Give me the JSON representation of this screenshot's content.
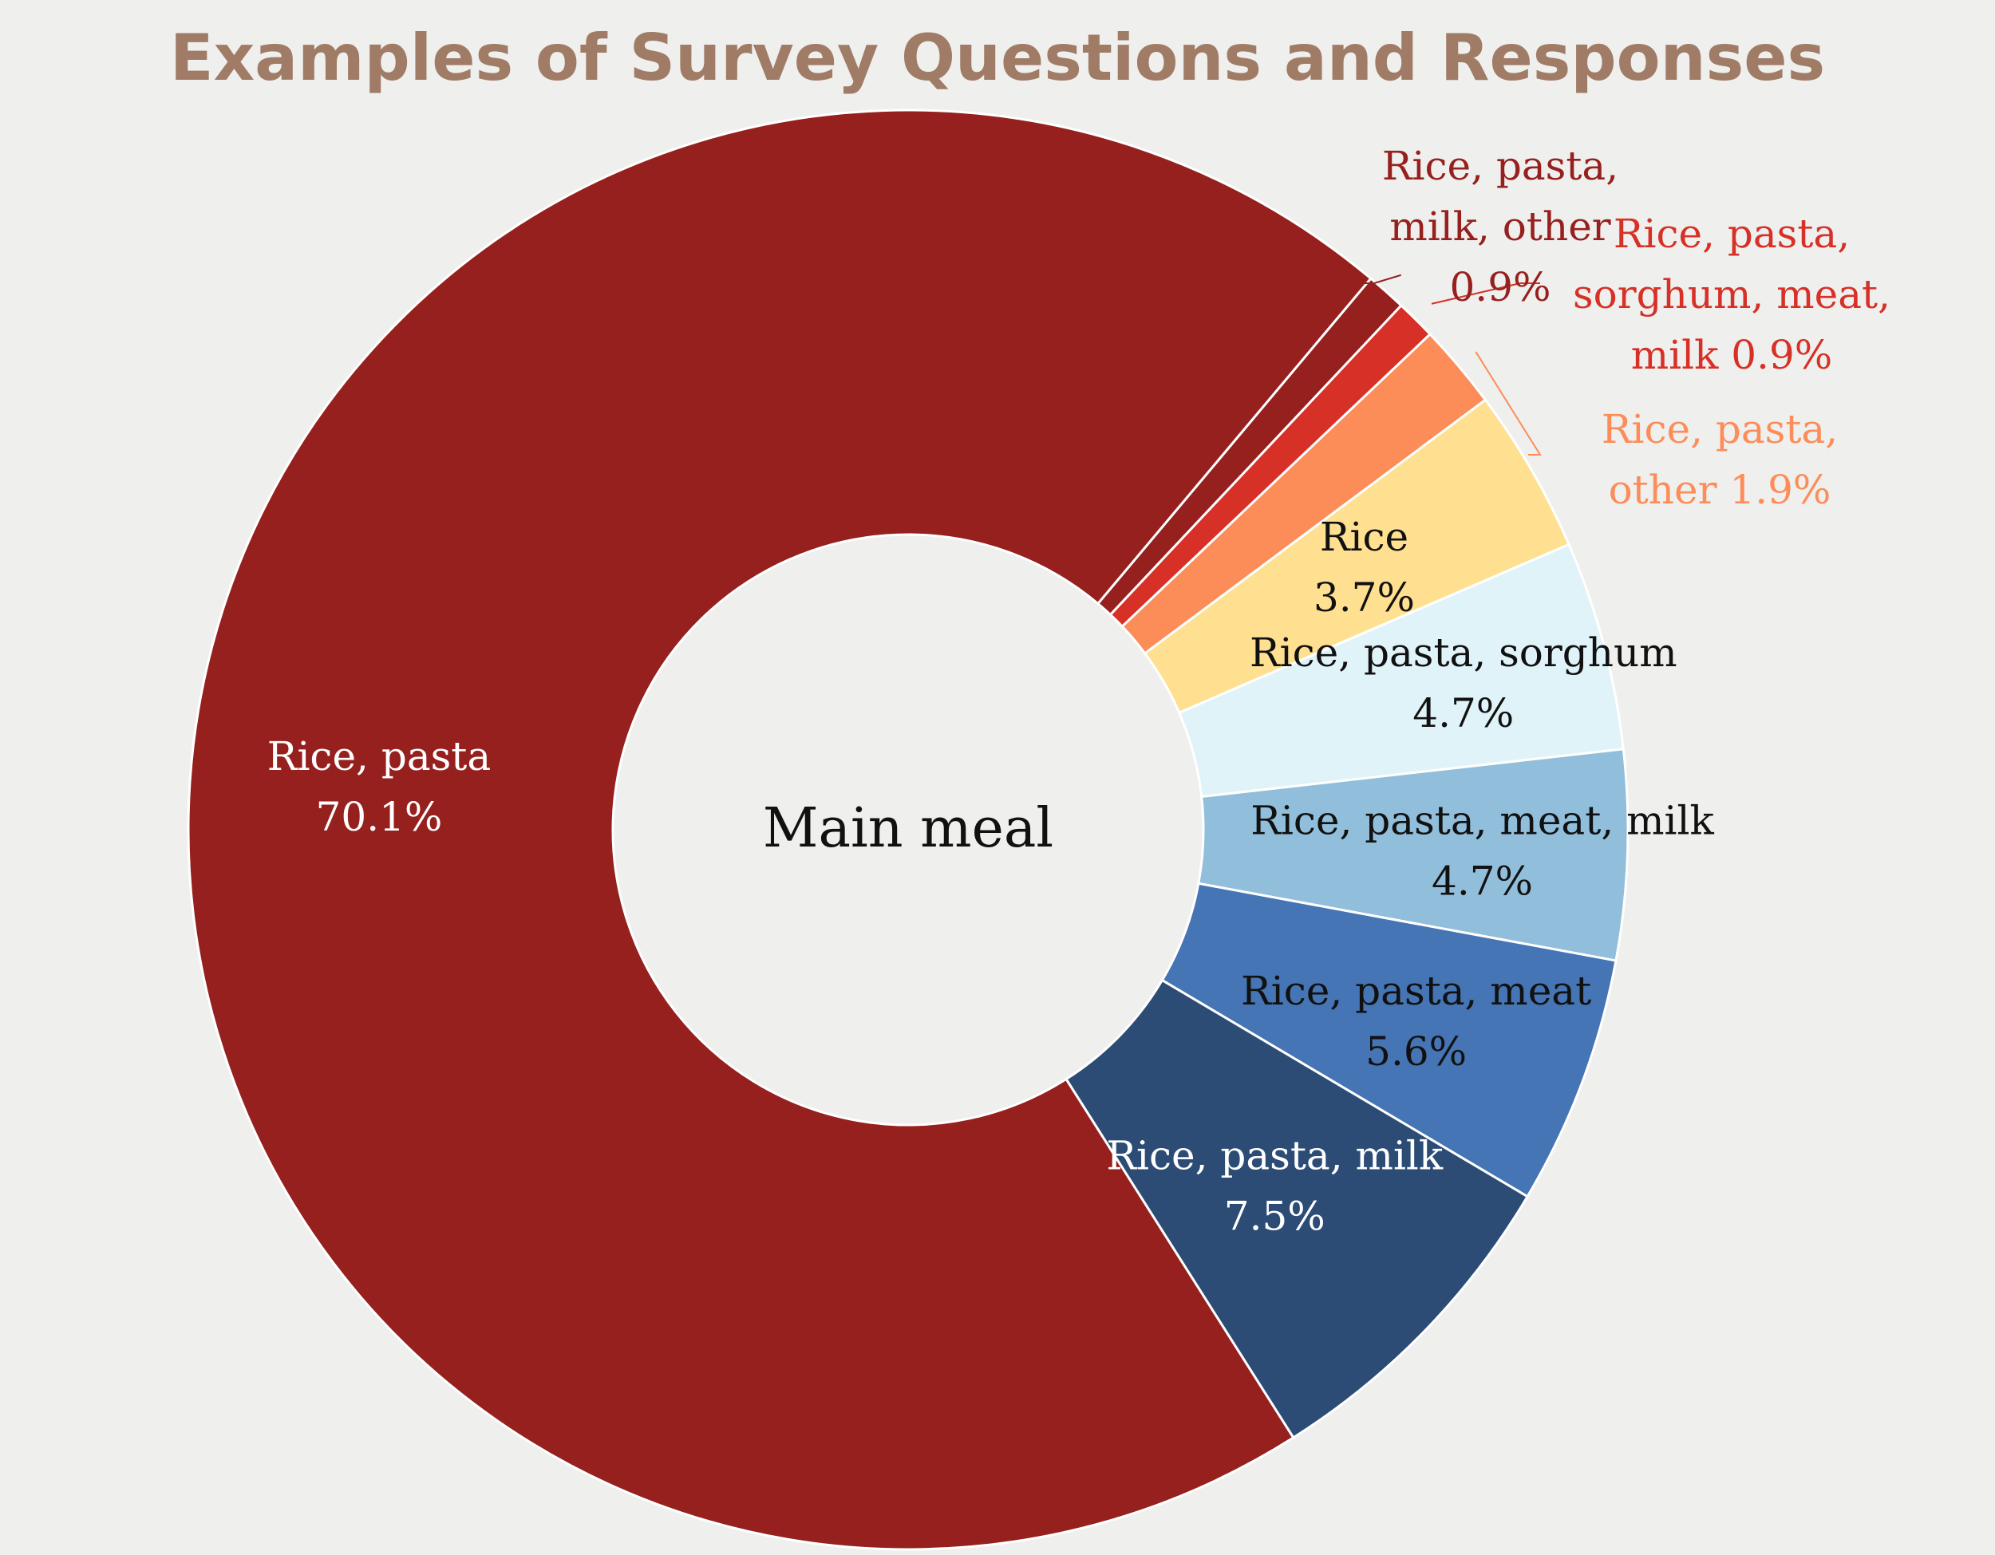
{
  "chart_data": {
    "type": "pie",
    "variant": "donut",
    "title": "Examples of Survey Questions and Responses",
    "center_label": "Main meal",
    "slices": [
      {
        "label_lines": [
          "Rice, pasta,",
          "milk, other"
        ],
        "value": 0.9,
        "value_label": "0.9%",
        "color": "#96201e",
        "label_color": "#96201e",
        "label_style": "outside"
      },
      {
        "label_lines": [
          "Rice, pasta,",
          "sorghum, meat,"
        ],
        "value": 0.9,
        "value_label": "milk 0.9%",
        "color": "#d73027",
        "label_color": "#d73027",
        "label_style": "outside"
      },
      {
        "label_lines": [
          "Rice, pasta,"
        ],
        "value": 1.9,
        "value_label": "other 1.9%",
        "color": "#fc8d59",
        "label_color": "#fc8d59",
        "label_style": "outside"
      },
      {
        "label_lines": [
          "Rice"
        ],
        "value": 3.7,
        "value_label": "3.7%",
        "color": "#fee090",
        "label_color": "#111111",
        "label_style": "inside"
      },
      {
        "label_lines": [
          "Rice, pasta, sorghum"
        ],
        "value": 4.7,
        "value_label": "4.7%",
        "color": "#e0f3f8",
        "label_color": "#111111",
        "label_style": "inside"
      },
      {
        "label_lines": [
          "Rice, pasta, meat, milk"
        ],
        "value": 4.7,
        "value_label": "4.7%",
        "color": "#91bfdb",
        "label_color": "#111111",
        "label_style": "inside"
      },
      {
        "label_lines": [
          "Rice, pasta, meat"
        ],
        "value": 5.6,
        "value_label": "5.6%",
        "color": "#4575b4",
        "label_color": "#111111",
        "label_style": "inside"
      },
      {
        "label_lines": [
          "Rice, pasta, milk"
        ],
        "value": 7.5,
        "value_label": "7.5%",
        "color": "#2c4c76",
        "label_color": "#ffffff",
        "label_style": "inside"
      },
      {
        "label_lines": [
          "Rice, pasta"
        ],
        "value": 70.1,
        "value_label": "70.1%",
        "color": "#96201e",
        "label_color": "#ffffff",
        "label_style": "inside"
      }
    ]
  }
}
